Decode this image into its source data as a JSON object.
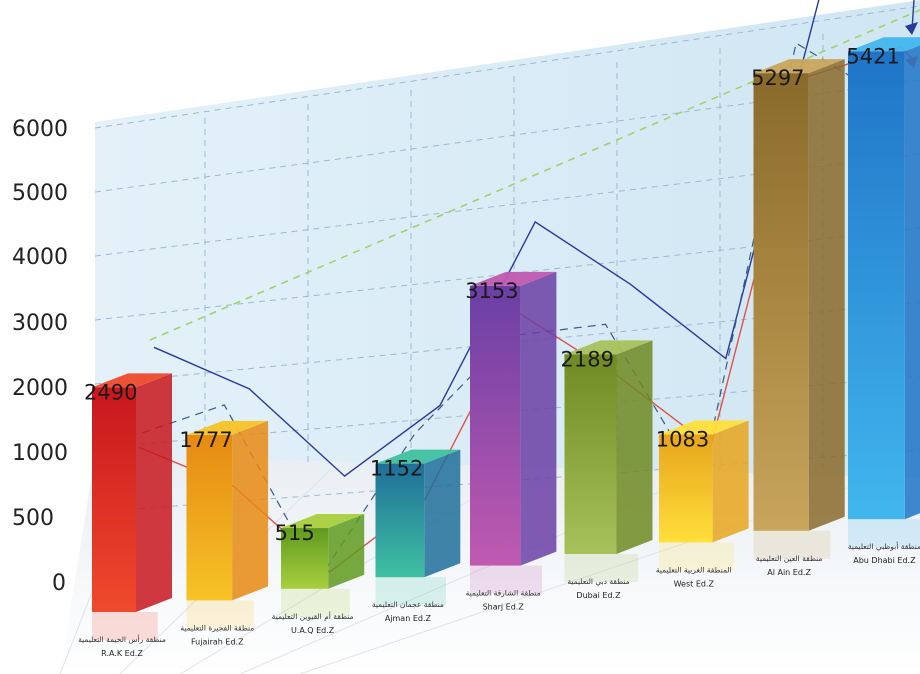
{
  "chart_data": {
    "type": "bar",
    "title": "",
    "xlabel": "",
    "ylabel": "",
    "y_ticks": [
      "6000",
      "5000",
      "4000",
      "3000",
      "2000",
      "1000",
      "500",
      "0"
    ],
    "categories": [
      {
        "ar": "منطقة رأس الخيمة التعليمية",
        "en": "R.A.K Ed.Z"
      },
      {
        "ar": "منطقة الفجيرة التعليمية",
        "en": "Fujairah Ed.Z"
      },
      {
        "ar": "منطقة أم القيوين التعليمية",
        "en": "U.A.Q Ed.Z"
      },
      {
        "ar": "منطقة عجمان التعليمية",
        "en": "Ajman Ed.Z"
      },
      {
        "ar": "منطقة الشارقة التعليمية",
        "en": "Sharj Ed.Z"
      },
      {
        "ar": "منطقة دبي التعليمية",
        "en": "Dubai Ed.Z"
      },
      {
        "ar": "المنطقة الغربية التعليمية",
        "en": "West Ed.Z"
      },
      {
        "ar": "منطقة العين التعليمية",
        "en": "Al Ain Ed.Z"
      },
      {
        "ar": "منطقة أبوظبي التعليمية",
        "en": "Abu Dhabi Ed.Z"
      }
    ],
    "values": [
      2490,
      1777,
      515,
      1152,
      3153,
      2189,
      1083,
      5297,
      5421
    ],
    "value_labels": [
      "2490",
      "1777",
      "515",
      "1152",
      "3153",
      "2189",
      "1083",
      "5297",
      "5421"
    ],
    "bar_colors": [
      [
        "#c8161d",
        "#ef4a2c"
      ],
      [
        "#e68a12",
        "#f7c327"
      ],
      [
        "#5f9a1f",
        "#a8cf3e"
      ],
      [
        "#1f6e9a",
        "#3fc1a1"
      ],
      [
        "#6a3fa5",
        "#c05ab0"
      ],
      [
        "#6f8a22",
        "#a7c25a"
      ],
      [
        "#e7a51c",
        "#ffdf3a"
      ],
      [
        "#8a6a2a",
        "#c8a55b"
      ],
      [
        "#1f74c7",
        "#41b6ee"
      ]
    ],
    "trend_colors": {
      "blue": "#2a3a9a",
      "red": "#e0514a",
      "green_dashed": "#9fd46a",
      "dashed": "#3a5a8a"
    },
    "panel_color": "#d6ebf6",
    "grid": true
  }
}
